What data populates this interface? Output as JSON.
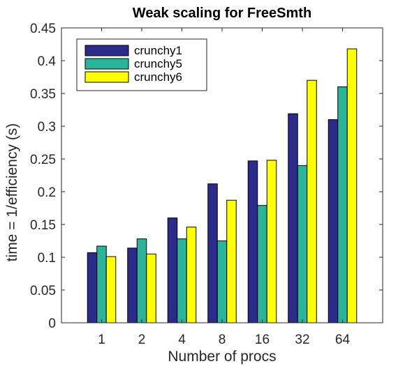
{
  "chart_data": {
    "type": "bar",
    "title": "Weak scaling for FreeSmth",
    "xlabel": "Number of procs",
    "ylabel": "time = 1/efficiency (s)",
    "categories": [
      "1",
      "2",
      "4",
      "8",
      "16",
      "32",
      "64"
    ],
    "ylim": [
      0,
      0.45
    ],
    "yticks": [
      0,
      0.05,
      0.1,
      0.15,
      0.2,
      0.25,
      0.3,
      0.35,
      0.4,
      0.45
    ],
    "ytick_labels": [
      "0",
      "0.05",
      "0.1",
      "0.15",
      "0.2",
      "0.25",
      "0.3",
      "0.35",
      "0.4",
      "0.45"
    ],
    "grid": false,
    "legend_position": "top-left",
    "series": [
      {
        "name": "crunchy1",
        "color": "#2b2b8c",
        "values": [
          0.107,
          0.114,
          0.16,
          0.212,
          0.247,
          0.319,
          0.31
        ]
      },
      {
        "name": "crunchy5",
        "color": "#2ab59b",
        "values": [
          0.117,
          0.128,
          0.128,
          0.125,
          0.179,
          0.24,
          0.36
        ]
      },
      {
        "name": "crunchy6",
        "color": "#ffff00",
        "values": [
          0.101,
          0.105,
          0.146,
          0.187,
          0.248,
          0.37,
          0.418
        ]
      }
    ]
  }
}
